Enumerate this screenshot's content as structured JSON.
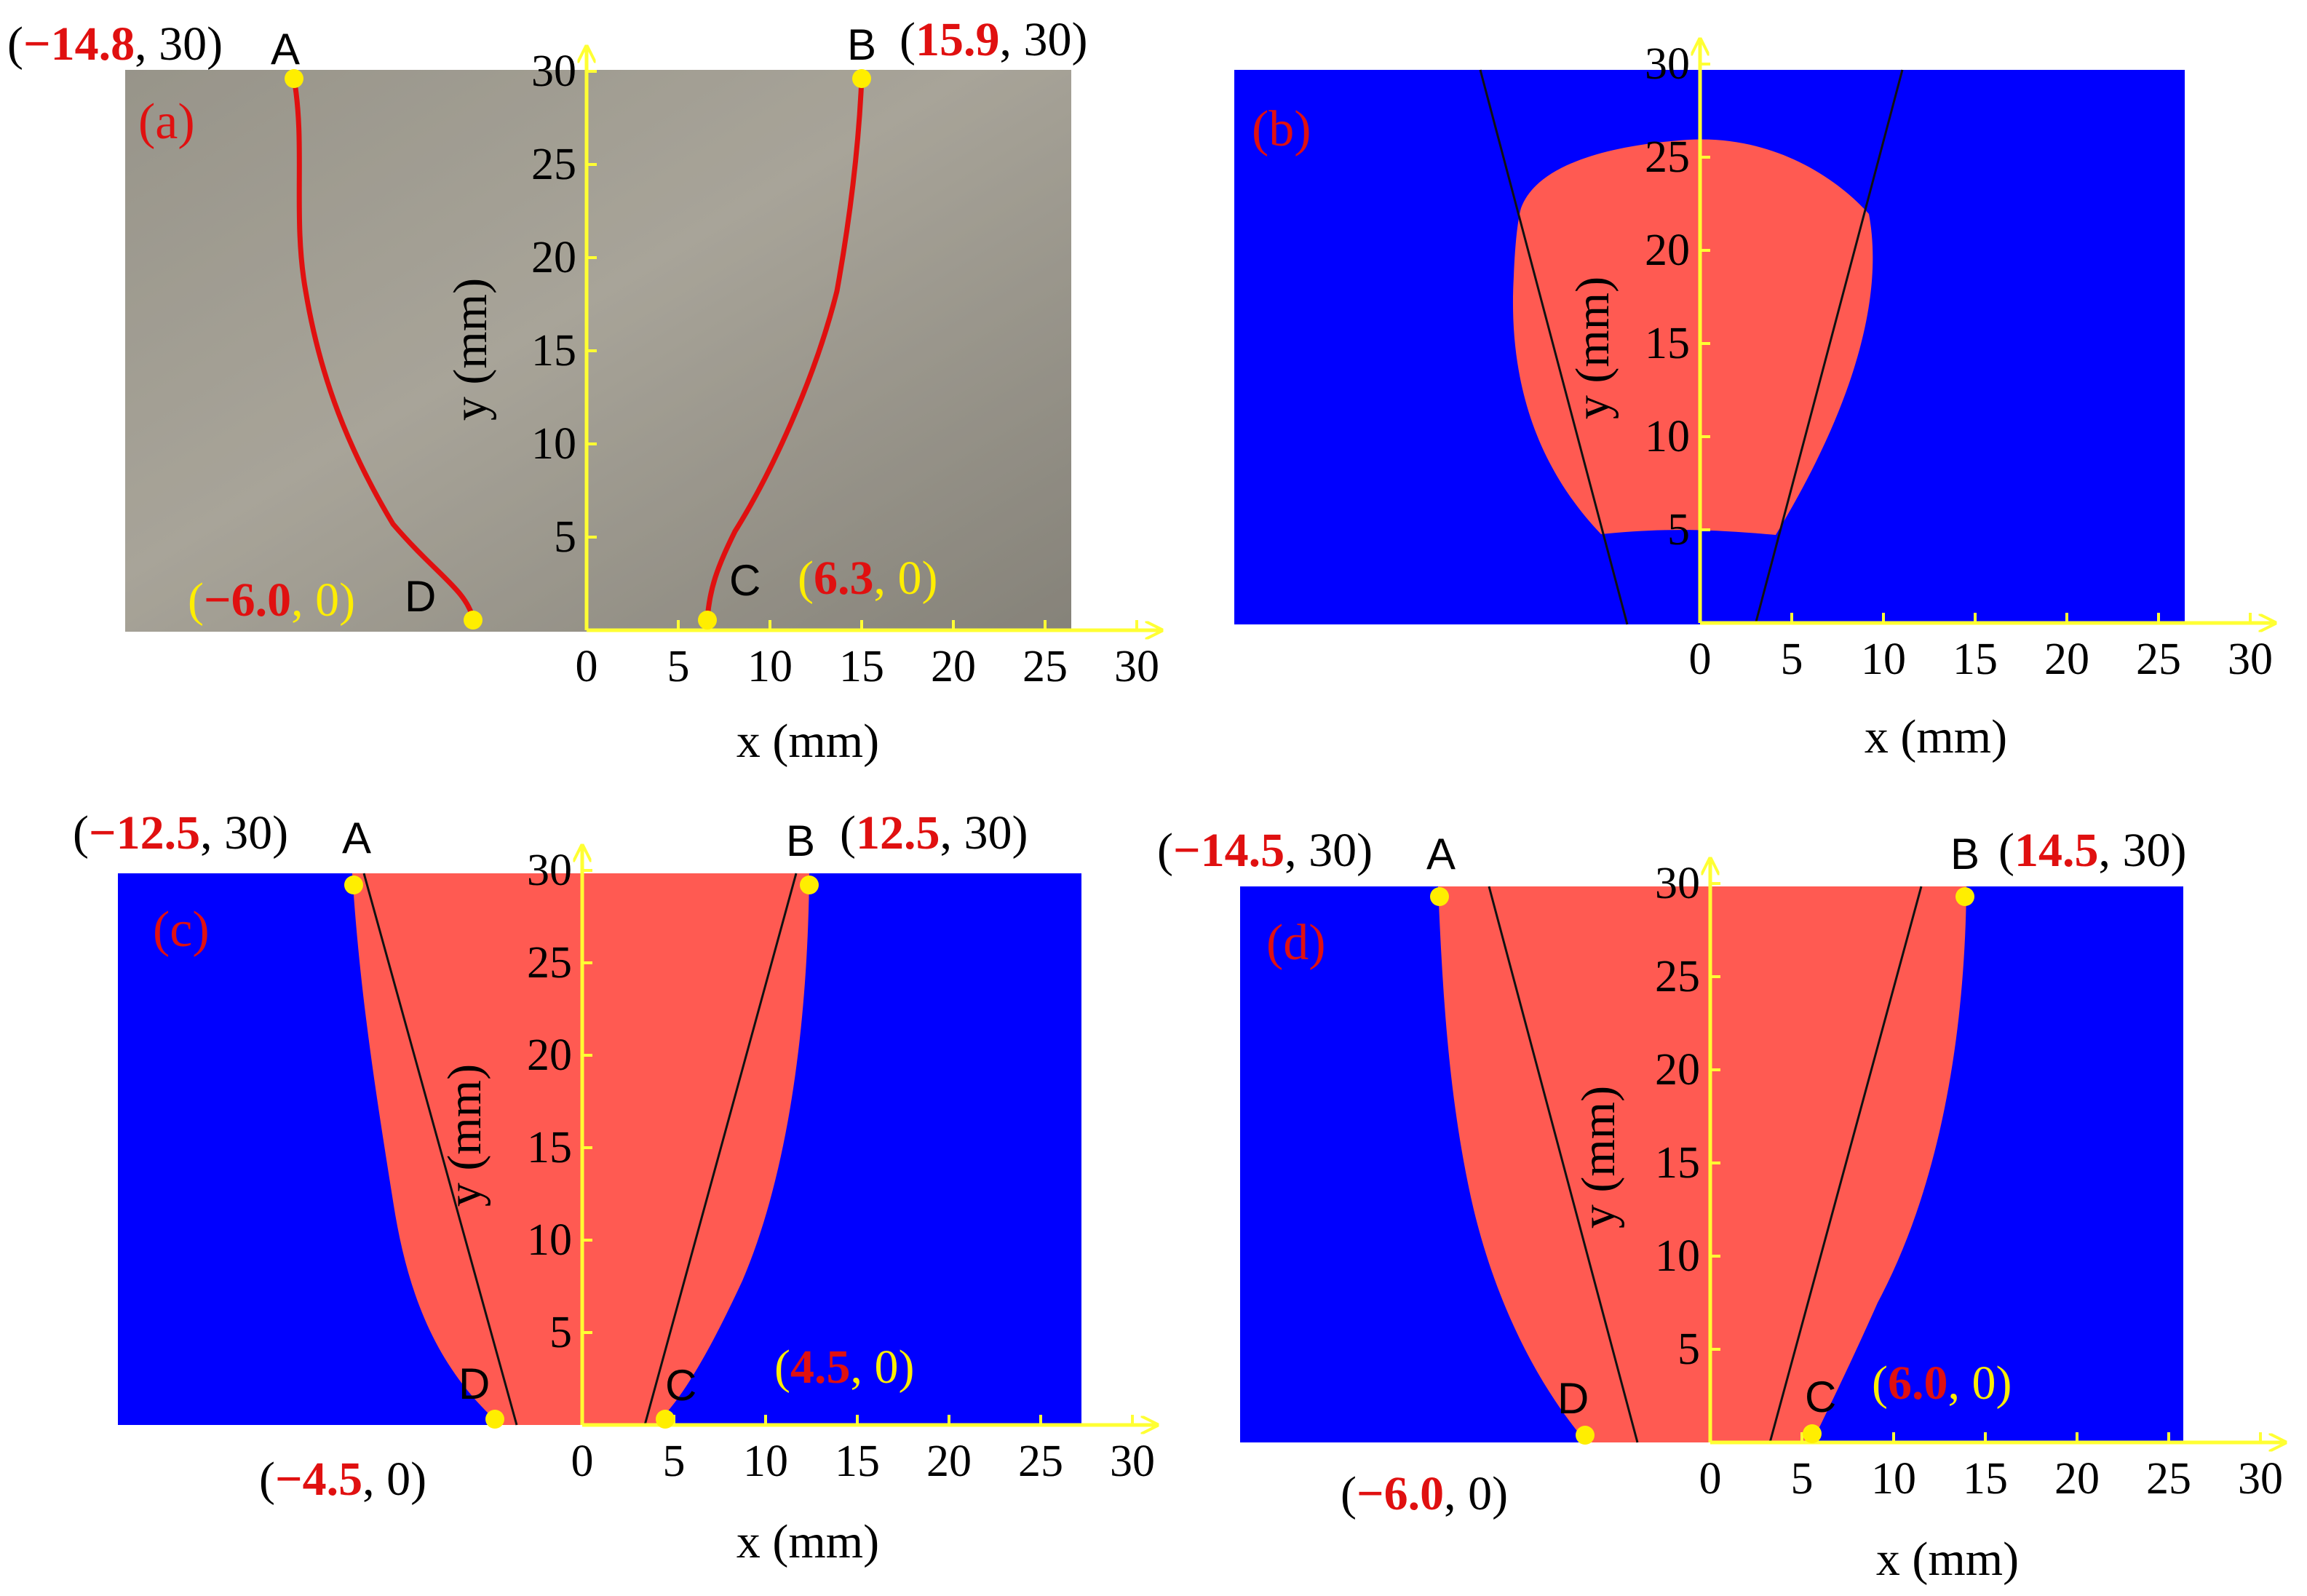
{
  "colors": {
    "blue": "#0000ff",
    "weld": "#ff5a52",
    "axis": "#ffff33",
    "label_red": "#e01010",
    "point": "#ffee00"
  },
  "axis_labels": {
    "x": "x (mm)",
    "y": "y (mm)"
  },
  "x_ticks": [
    "0",
    "5",
    "10",
    "15",
    "20",
    "25",
    "30"
  ],
  "y_ticks": [
    "5",
    "10",
    "15",
    "20",
    "25",
    "30"
  ],
  "panels": [
    {
      "id": "a",
      "label": "(a)",
      "points": {
        "A": "A",
        "B": "B",
        "C": "C",
        "D": "D"
      },
      "coords": {
        "A": {
          "x": "−14.8",
          "y": ", 30)"
        },
        "B": {
          "x": "15.9",
          "y": ", 30)"
        },
        "C": {
          "x": "6.3",
          "y": ", 0)"
        },
        "D": {
          "x": "−6.0",
          "y": ", 0)"
        }
      }
    },
    {
      "id": "b",
      "label": "(b)"
    },
    {
      "id": "c",
      "label": "(c)",
      "points": {
        "A": "A",
        "B": "B",
        "C": "C",
        "D": "D"
      },
      "coords": {
        "A": {
          "x": "−12.5",
          "y": ", 30)"
        },
        "B": {
          "x": "12.5",
          "y": ", 30)"
        },
        "C": {
          "x": "4.5",
          "y": ", 0)"
        },
        "D": {
          "x": "−4.5",
          "y": ", 0)"
        }
      }
    },
    {
      "id": "d",
      "label": "(d)",
      "points": {
        "A": "A",
        "B": "B",
        "C": "C",
        "D": "D"
      },
      "coords": {
        "A": {
          "x": "−14.5",
          "y": ", 30)"
        },
        "B": {
          "x": "14.5",
          "y": ", 30)"
        },
        "C": {
          "x": "6.0",
          "y": ", 0)"
        },
        "D": {
          "x": "−6.0",
          "y": ", 0)"
        }
      }
    }
  ]
}
